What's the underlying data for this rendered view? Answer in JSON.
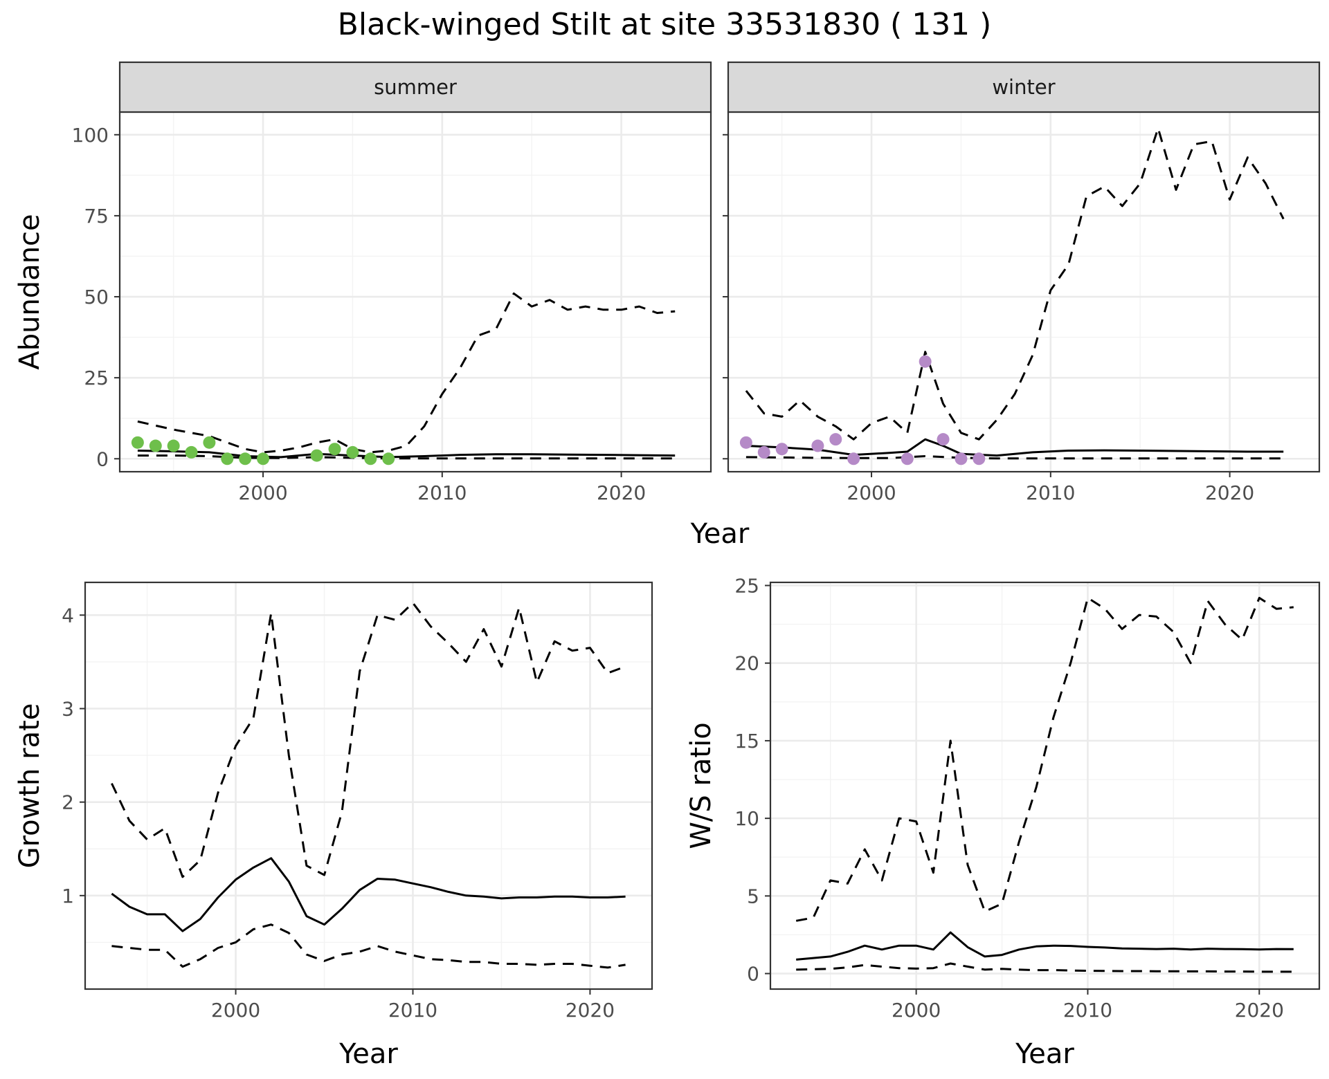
{
  "figure": {
    "title": "Black-winged Stilt at site 33531830 ( 131 )",
    "shared_xlabel": "Year",
    "colors": {
      "summer_points": "#6ebf4b",
      "winter_points": "#b58ac7",
      "lines": "#000000"
    }
  },
  "chart_data": [
    {
      "type": "line",
      "facet": "summer",
      "xlabel": "Year",
      "ylabel": "Abundance",
      "xlim": [
        1992,
        2025
      ],
      "ylim": [
        -4,
        107
      ],
      "xticks": [
        2000,
        2010,
        2020
      ],
      "yticks": [
        0,
        25,
        50,
        75,
        100
      ],
      "grid": true,
      "points": {
        "x": [
          1993,
          1994,
          1995,
          1996,
          1997,
          1998,
          1999,
          2000,
          2003,
          2004,
          2005,
          2006,
          2007
        ],
        "y": [
          5,
          4,
          4,
          2,
          5,
          0,
          0,
          0,
          1,
          3,
          2,
          0,
          0
        ]
      },
      "series": [
        {
          "style": "solid",
          "x": [
            1993,
            1995,
            1997,
            1999,
            2001,
            2003,
            2005,
            2007,
            2009,
            2011,
            2013,
            2015,
            2017,
            2019,
            2021,
            2023
          ],
          "y": [
            2.5,
            2.3,
            2.0,
            0.8,
            0.5,
            1.5,
            1.0,
            0.5,
            0.8,
            1.2,
            1.4,
            1.4,
            1.3,
            1.2,
            1.1,
            1.0
          ]
        },
        {
          "style": "dashed",
          "x": [
            1993,
            1995,
            1997,
            1999,
            2000,
            2001,
            2002,
            2003,
            2004,
            2005,
            2006,
            2007,
            2008,
            2009,
            2010,
            2011,
            2012,
            2013,
            2014,
            2015,
            2016,
            2017,
            2018,
            2019,
            2020,
            2021,
            2022,
            2023
          ],
          "y": [
            11.5,
            9,
            7,
            3,
            2,
            2.5,
            3.5,
            5,
            6,
            3,
            2,
            2.5,
            4,
            10,
            20,
            28,
            38,
            40,
            51,
            47,
            49,
            46,
            47,
            46,
            46,
            47,
            45,
            45.5
          ]
        },
        {
          "style": "dashed",
          "x": [
            1993,
            1995,
            1997,
            1999,
            2001,
            2003,
            2005,
            2007,
            2009,
            2011,
            2013,
            2015,
            2017,
            2019,
            2021,
            2023
          ],
          "y": [
            1.0,
            1.0,
            0.8,
            0.3,
            0.2,
            0.5,
            0.3,
            0.1,
            0.1,
            0.1,
            0.1,
            0.1,
            0.1,
            0.1,
            0.1,
            0.1
          ]
        }
      ]
    },
    {
      "type": "line",
      "facet": "winter",
      "xlabel": "Year",
      "ylabel": "",
      "xlim": [
        1992,
        2025
      ],
      "ylim": [
        -4,
        107
      ],
      "xticks": [
        2000,
        2010,
        2020
      ],
      "yticks": [
        0,
        25,
        50,
        75,
        100
      ],
      "grid": true,
      "points": {
        "x": [
          1993,
          1994,
          1995,
          1997,
          1998,
          1999,
          2002,
          2003,
          2004,
          2005,
          2006
        ],
        "y": [
          5,
          2,
          3,
          4,
          6,
          0,
          0,
          30,
          6,
          0,
          0
        ]
      },
      "series": [
        {
          "style": "solid",
          "x": [
            1993,
            1995,
            1997,
            1999,
            2001,
            2002,
            2003,
            2004,
            2005,
            2007,
            2009,
            2011,
            2013,
            2015,
            2017,
            2019,
            2021,
            2023
          ],
          "y": [
            4,
            3.5,
            2.8,
            1.2,
            1.8,
            2.2,
            6,
            4,
            1.5,
            1.0,
            2.0,
            2.5,
            2.6,
            2.5,
            2.4,
            2.3,
            2.2,
            2.2
          ]
        },
        {
          "style": "dashed",
          "x": [
            1993,
            1994,
            1995,
            1996,
            1997,
            1998,
            1999,
            2000,
            2001,
            2002,
            2003,
            2004,
            2005,
            2006,
            2007,
            2008,
            2009,
            2010,
            2011,
            2012,
            2013,
            2014,
            2015,
            2016,
            2017,
            2018,
            2019,
            2020,
            2021,
            2022,
            2023
          ],
          "y": [
            21,
            14,
            13,
            18,
            13,
            10,
            6,
            11,
            13,
            8,
            33,
            17,
            8,
            6,
            12,
            20,
            32,
            52,
            60,
            81,
            84,
            78,
            85,
            102,
            83,
            97,
            98,
            80,
            93,
            85,
            74
          ]
        },
        {
          "style": "dashed",
          "x": [
            1993,
            1995,
            1997,
            1999,
            2001,
            2003,
            2005,
            2007,
            2009,
            2011,
            2013,
            2015,
            2017,
            2019,
            2021,
            2023
          ],
          "y": [
            0.5,
            0.4,
            0.3,
            0.2,
            0.2,
            0.8,
            0.3,
            0.1,
            0.1,
            0.1,
            0.1,
            0.1,
            0.1,
            0.1,
            0.1,
            0.1
          ]
        }
      ]
    },
    {
      "type": "line",
      "facet": "",
      "xlabel": "Year",
      "ylabel": "Growth rate",
      "xlim": [
        1991.5,
        2023.5
      ],
      "ylim": [
        0.0,
        4.35
      ],
      "xticks": [
        2000,
        2010,
        2020
      ],
      "yticks": [
        1,
        2,
        3,
        4
      ],
      "grid": true,
      "series": [
        {
          "style": "solid",
          "x": [
            1993,
            1994,
            1995,
            1996,
            1997,
            1998,
            1999,
            2000,
            2001,
            2002,
            2003,
            2004,
            2005,
            2006,
            2007,
            2008,
            2009,
            2010,
            2011,
            2012,
            2013,
            2014,
            2015,
            2016,
            2017,
            2018,
            2019,
            2020,
            2021,
            2022
          ],
          "y": [
            1.02,
            0.88,
            0.8,
            0.8,
            0.62,
            0.75,
            0.98,
            1.17,
            1.3,
            1.4,
            1.15,
            0.78,
            0.69,
            0.86,
            1.06,
            1.18,
            1.17,
            1.13,
            1.09,
            1.04,
            1.0,
            0.99,
            0.97,
            0.98,
            0.98,
            0.99,
            0.99,
            0.98,
            0.98,
            0.99
          ]
        },
        {
          "style": "dashed",
          "x": [
            1993,
            1994,
            1995,
            1996,
            1997,
            1998,
            1999,
            2000,
            2001,
            2002,
            2003,
            2004,
            2005,
            2006,
            2007,
            2008,
            2009,
            2010,
            2011,
            2012,
            2013,
            2014,
            2015,
            2016,
            2017,
            2018,
            2019,
            2020,
            2021,
            2022
          ],
          "y": [
            2.2,
            1.8,
            1.6,
            1.72,
            1.2,
            1.38,
            2.1,
            2.6,
            2.9,
            4.02,
            2.5,
            1.32,
            1.22,
            1.9,
            3.4,
            4.0,
            3.95,
            4.13,
            3.88,
            3.7,
            3.5,
            3.85,
            3.45,
            4.08,
            3.28,
            3.72,
            3.62,
            3.65,
            3.38,
            3.45
          ]
        },
        {
          "style": "dashed",
          "x": [
            1993,
            1994,
            1995,
            1996,
            1997,
            1998,
            1999,
            2000,
            2001,
            2002,
            2003,
            2004,
            2005,
            2006,
            2007,
            2008,
            2009,
            2010,
            2011,
            2012,
            2013,
            2014,
            2015,
            2016,
            2017,
            2018,
            2019,
            2020,
            2021,
            2022
          ],
          "y": [
            0.46,
            0.44,
            0.42,
            0.42,
            0.24,
            0.32,
            0.44,
            0.5,
            0.64,
            0.69,
            0.6,
            0.37,
            0.3,
            0.37,
            0.4,
            0.46,
            0.4,
            0.36,
            0.32,
            0.31,
            0.29,
            0.29,
            0.27,
            0.27,
            0.26,
            0.27,
            0.27,
            0.25,
            0.23,
            0.26
          ]
        }
      ]
    },
    {
      "type": "line",
      "facet": "",
      "xlabel": "Year",
      "ylabel": "W/S ratio",
      "xlim": [
        1991.5,
        2023.5
      ],
      "ylim": [
        -1,
        25.2
      ],
      "xticks": [
        2000,
        2010,
        2020
      ],
      "yticks": [
        0,
        5,
        10,
        15,
        20,
        25
      ],
      "grid": true,
      "series": [
        {
          "style": "solid",
          "x": [
            1993,
            1994,
            1995,
            1996,
            1997,
            1998,
            1999,
            2000,
            2001,
            2002,
            2003,
            2004,
            2005,
            2006,
            2007,
            2008,
            2009,
            2010,
            2011,
            2012,
            2013,
            2014,
            2015,
            2016,
            2017,
            2018,
            2019,
            2020,
            2021,
            2022
          ],
          "y": [
            0.9,
            1.0,
            1.1,
            1.4,
            1.8,
            1.55,
            1.8,
            1.8,
            1.55,
            2.65,
            1.7,
            1.1,
            1.2,
            1.55,
            1.75,
            1.8,
            1.78,
            1.72,
            1.68,
            1.62,
            1.6,
            1.58,
            1.6,
            1.55,
            1.6,
            1.58,
            1.57,
            1.55,
            1.58,
            1.57
          ]
        },
        {
          "style": "dashed",
          "x": [
            1993,
            1994,
            1995,
            1996,
            1997,
            1998,
            1999,
            2000,
            2001,
            2002,
            2003,
            2004,
            2005,
            2006,
            2007,
            2008,
            2009,
            2010,
            2011,
            2012,
            2013,
            2014,
            2015,
            2016,
            2017,
            2018,
            2019,
            2020,
            2021,
            2022
          ],
          "y": [
            3.4,
            3.6,
            6.0,
            5.8,
            8.0,
            6.0,
            10.0,
            9.8,
            6.5,
            15.0,
            7.0,
            4.0,
            4.5,
            8.5,
            12.0,
            16.5,
            20.0,
            24.2,
            23.5,
            22.2,
            23.1,
            23.0,
            22.0,
            20.0,
            24.0,
            22.5,
            21.5,
            24.2,
            23.5,
            23.6
          ]
        },
        {
          "style": "dashed",
          "x": [
            1993,
            1994,
            1995,
            1996,
            1997,
            1998,
            1999,
            2000,
            2001,
            2002,
            2003,
            2004,
            2005,
            2006,
            2007,
            2008,
            2009,
            2010,
            2011,
            2012,
            2013,
            2014,
            2015,
            2016,
            2017,
            2018,
            2019,
            2020,
            2021,
            2022
          ],
          "y": [
            0.25,
            0.28,
            0.3,
            0.4,
            0.55,
            0.45,
            0.35,
            0.32,
            0.35,
            0.65,
            0.45,
            0.25,
            0.3,
            0.25,
            0.22,
            0.22,
            0.2,
            0.18,
            0.17,
            0.16,
            0.16,
            0.15,
            0.15,
            0.14,
            0.14,
            0.13,
            0.13,
            0.12,
            0.12,
            0.12
          ]
        }
      ]
    }
  ]
}
